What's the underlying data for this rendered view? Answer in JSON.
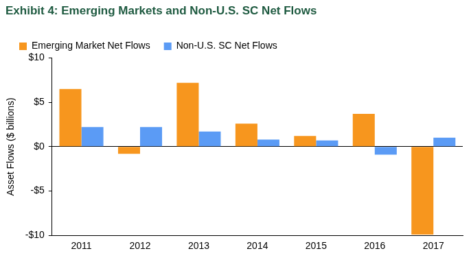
{
  "chart_data": {
    "type": "bar",
    "title": "Exhibit 4: Emerging Markets and Non-U.S. SC Net Flows",
    "y_label": "Asset Flows ($ billions)",
    "categories": [
      "2011",
      "2012",
      "2013",
      "2014",
      "2015",
      "2016",
      "2017"
    ],
    "series": [
      {
        "name": "Emerging Market Net Flows",
        "color": "#f7961e",
        "values": [
          6.5,
          -0.8,
          7.2,
          2.6,
          1.2,
          3.7,
          -9.9
        ]
      },
      {
        "name": "Non-U.S. SC Net Flows",
        "color": "#5b9bf5",
        "values": [
          2.2,
          2.2,
          1.7,
          0.8,
          0.7,
          -0.9,
          1.0
        ]
      }
    ],
    "ylim": [
      -10,
      10
    ],
    "yticks": [
      {
        "value": -10,
        "label": "-$10"
      },
      {
        "value": -5,
        "label": "-$5"
      },
      {
        "value": 0,
        "label": "$0"
      },
      {
        "value": 5,
        "label": "$5"
      },
      {
        "value": 10,
        "label": "$10"
      }
    ],
    "grid": false,
    "legend": "top"
  }
}
